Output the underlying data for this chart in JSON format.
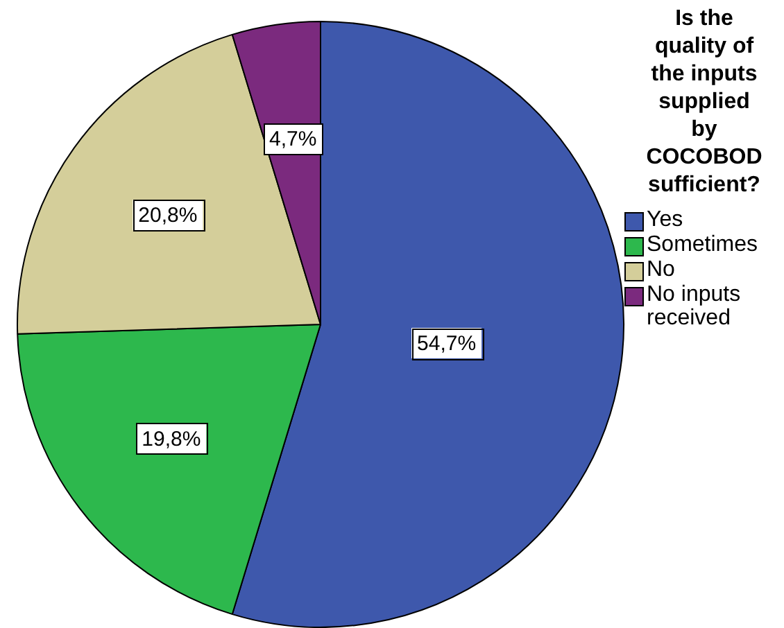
{
  "chart_data": {
    "type": "pie",
    "legend_title": "Is the quality of the inputs supplied by COCOBOD sufficient?",
    "categories": [
      "Yes",
      "Sometimes",
      "No",
      "No inputs received"
    ],
    "values": [
      54.7,
      19.8,
      20.8,
      4.7
    ],
    "colors": [
      "#3e58ac",
      "#2db84d",
      "#d4ce9a",
      "#7b2a7e"
    ],
    "value_labels": [
      "54,7%",
      "19,8%",
      "20,8%",
      "4,7%"
    ],
    "legend": "right"
  }
}
